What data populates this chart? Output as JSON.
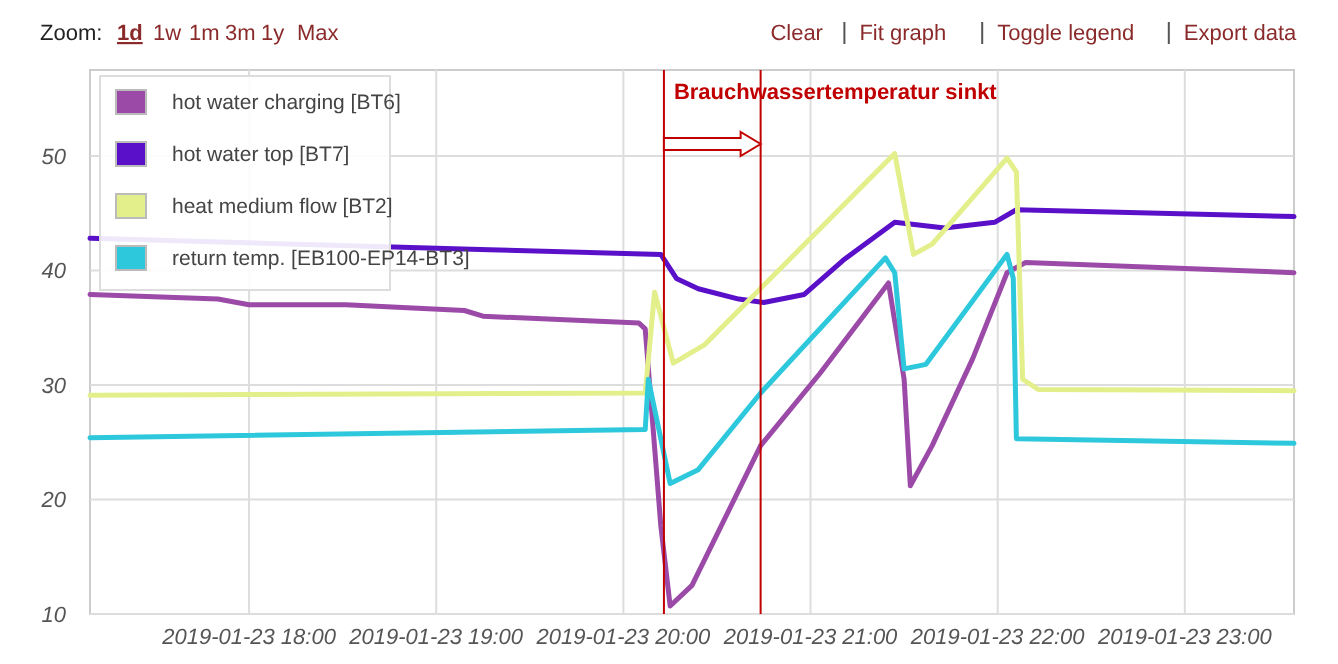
{
  "chart_data": {
    "type": "line",
    "xlim": [
      "2019-01-23T17:09",
      "2019-01-23T23:35"
    ],
    "ylim": [
      10,
      57.5
    ],
    "xticks": [
      {
        "value": "2019-01-23T18:00",
        "label": "2019-01-23 18:00"
      },
      {
        "value": "2019-01-23T19:00",
        "label": "2019-01-23 19:00"
      },
      {
        "value": "2019-01-23T20:00",
        "label": "2019-01-23 20:00"
      },
      {
        "value": "2019-01-23T21:00",
        "label": "2019-01-23 21:00"
      },
      {
        "value": "2019-01-23T22:00",
        "label": "2019-01-23 22:00"
      },
      {
        "value": "2019-01-23T23:00",
        "label": "2019-01-23 23:00"
      }
    ],
    "yticks": [
      10,
      20,
      30,
      40,
      50
    ],
    "grid": true,
    "legend": "top left",
    "marker": "none",
    "line_style": "solid",
    "series": [
      {
        "name": "hot water charging [BT6]",
        "color": "#9b4aa8",
        "x": [
          "2019-01-23T17:09",
          "2019-01-23T17:50",
          "2019-01-23T18:00",
          "2019-01-23T18:31",
          "2019-01-23T19:09",
          "2019-01-23T19:15",
          "2019-01-23T20:05",
          "2019-01-23T20:07",
          "2019-01-23T20:12",
          "2019-01-23T20:15",
          "2019-01-23T20:22",
          "2019-01-23T20:44",
          "2019-01-23T21:03",
          "2019-01-23T21:25",
          "2019-01-23T21:30",
          "2019-01-23T21:32",
          "2019-01-23T21:39",
          "2019-01-23T21:52",
          "2019-01-23T22:03",
          "2019-01-23T22:09",
          "2019-01-23T23:35"
        ],
        "values": [
          37.9,
          37.5,
          37.0,
          37.0,
          36.5,
          36.0,
          35.4,
          34.9,
          17.7,
          10.7,
          12.5,
          24.7,
          31.0,
          38.9,
          30.5,
          21.2,
          24.7,
          32.3,
          39.8,
          40.7,
          39.8
        ]
      },
      {
        "name": "hot water top [BT7]",
        "color": "#5a10c8",
        "x": [
          "2019-01-23T17:09",
          "2019-01-23T19:17",
          "2019-01-23T20:12",
          "2019-01-23T20:17",
          "2019-01-23T20:24",
          "2019-01-23T20:37",
          "2019-01-23T20:45",
          "2019-01-23T20:58",
          "2019-01-23T21:11",
          "2019-01-23T21:27",
          "2019-01-23T21:43",
          "2019-01-23T21:59",
          "2019-01-23T22:06",
          "2019-01-23T23:35"
        ],
        "values": [
          42.8,
          41.8,
          41.4,
          39.3,
          38.4,
          37.5,
          37.2,
          37.9,
          41.0,
          44.2,
          43.7,
          44.2,
          45.3,
          44.7
        ]
      },
      {
        "name": "heat medium flow [BT2]",
        "color": "#e3ef8a",
        "x": [
          "2019-01-23T17:09",
          "2019-01-23T20:07",
          "2019-01-23T20:10",
          "2019-01-23T20:16",
          "2019-01-23T20:26",
          "2019-01-23T21:27",
          "2019-01-23T21:33",
          "2019-01-23T21:39",
          "2019-01-23T22:03",
          "2019-01-23T22:06",
          "2019-01-23T22:08",
          "2019-01-23T22:13",
          "2019-01-23T23:35"
        ],
        "values": [
          29.1,
          29.3,
          38.1,
          31.9,
          33.5,
          50.2,
          41.4,
          42.3,
          49.8,
          48.6,
          30.5,
          29.6,
          29.5
        ]
      },
      {
        "name": "return temp. [EB100-EP14-BT3]",
        "color": "#2ec8dc",
        "x": [
          "2019-01-23T17:09",
          "2019-01-23T20:07",
          "2019-01-23T20:08",
          "2019-01-23T20:15",
          "2019-01-23T20:24",
          "2019-01-23T20:44",
          "2019-01-23T21:24",
          "2019-01-23T21:27",
          "2019-01-23T21:30",
          "2019-01-23T21:37",
          "2019-01-23T22:03",
          "2019-01-23T22:05",
          "2019-01-23T22:06",
          "2019-01-23T23:35"
        ],
        "values": [
          25.4,
          26.1,
          30.5,
          21.4,
          22.6,
          29.3,
          41.1,
          39.8,
          31.4,
          31.8,
          41.4,
          39.3,
          25.3,
          24.9
        ]
      }
    ],
    "ref_lines": [
      {
        "axis": "x",
        "value": "2019-01-23T20:13",
        "color": "#c00000"
      },
      {
        "axis": "x",
        "value": "2019-01-23T20:44",
        "color": "#c00000"
      }
    ],
    "annotations": [
      {
        "text": "Brauchwassertemperatur sinkt",
        "x": "2019-01-23T20:13",
        "y": 55
      },
      "Zoom:",
      "1d",
      "1w",
      "1m",
      "3m",
      "1y",
      "Max",
      "Clear",
      "Fit graph",
      "Toggle legend",
      "Export data"
    ]
  }
}
